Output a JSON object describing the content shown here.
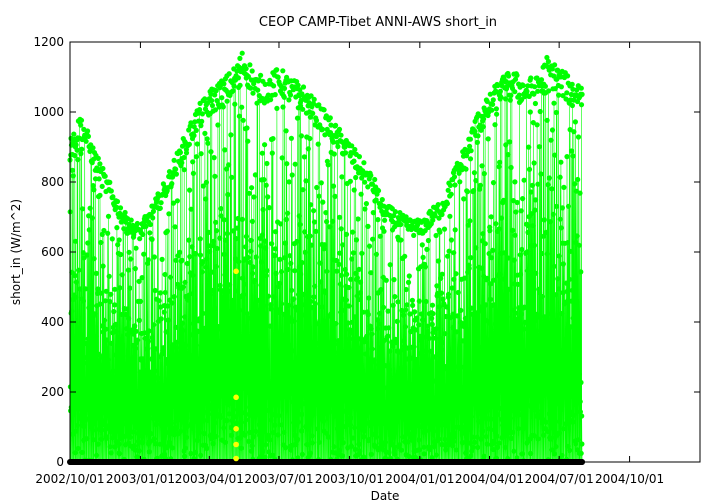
{
  "chart_data": {
    "type": "scatter",
    "title": "CEOP CAMP-Tibet ANNI-AWS  short_in",
    "xlabel": "Date",
    "ylabel": "short_in (W/m^2)",
    "ylim": [
      0,
      1200
    ],
    "xlim": [
      "2002-10-01",
      "2005-01-01"
    ],
    "y_ticks": [
      0,
      200,
      400,
      600,
      800,
      1000,
      1200
    ],
    "x_ticks": [
      "2002/10/01",
      "2003/01/01",
      "2003/04/01",
      "2003/07/01",
      "2003/10/01",
      "2004/01/01",
      "2004/04/01",
      "2004/07/01",
      "2004/10/01"
    ],
    "data_range": [
      "2002-10-01",
      "2004-07-31"
    ],
    "grid": false,
    "colors": {
      "main_series": "#00ff00",
      "flagged_points": "#ffff00",
      "zero_points": "#000000"
    },
    "series": [
      {
        "description": "daily maximum envelope",
        "x": [
          "2002-10-01",
          "2002-10-15",
          "2002-11-01",
          "2002-11-15",
          "2002-12-01",
          "2002-12-15",
          "2003-01-01",
          "2003-01-15",
          "2003-02-01",
          "2003-02-15",
          "2003-03-01",
          "2003-03-15",
          "2003-04-01",
          "2003-04-15",
          "2003-05-01",
          "2003-05-15",
          "2003-06-01",
          "2003-06-15",
          "2003-07-01",
          "2003-07-15",
          "2003-08-01",
          "2003-08-15",
          "2003-09-01",
          "2003-09-15",
          "2003-10-01",
          "2003-10-15",
          "2003-11-01",
          "2003-11-15",
          "2003-12-01",
          "2003-12-15",
          "2004-01-01",
          "2004-01-15",
          "2004-02-01",
          "2004-02-15",
          "2004-03-01",
          "2004-03-15",
          "2004-04-01",
          "2004-04-15",
          "2004-05-01",
          "2004-05-15",
          "2004-06-01",
          "2004-06-15",
          "2004-07-01",
          "2004-07-15",
          "2004-07-31"
        ],
        "values": [
          920,
          1000,
          900,
          830,
          760,
          700,
          680,
          730,
          800,
          870,
          940,
          1010,
          1060,
          1090,
          1120,
          1180,
          1110,
          1100,
          1130,
          1100,
          1080,
          1040,
          1000,
          960,
          920,
          870,
          820,
          740,
          720,
          700,
          690,
          720,
          760,
          840,
          910,
          990,
          1050,
          1100,
          1120,
          1100,
          1100,
          1160,
          1130,
          1100,
          1090
        ]
      }
    ],
    "flagged_points": [
      {
        "x": "2003-05-06",
        "y": 545
      },
      {
        "x": "2003-05-06",
        "y": 185
      },
      {
        "x": "2003-05-06",
        "y": 95
      },
      {
        "x": "2003-05-06",
        "y": 50
      },
      {
        "x": "2003-05-06",
        "y": 10
      }
    ]
  }
}
